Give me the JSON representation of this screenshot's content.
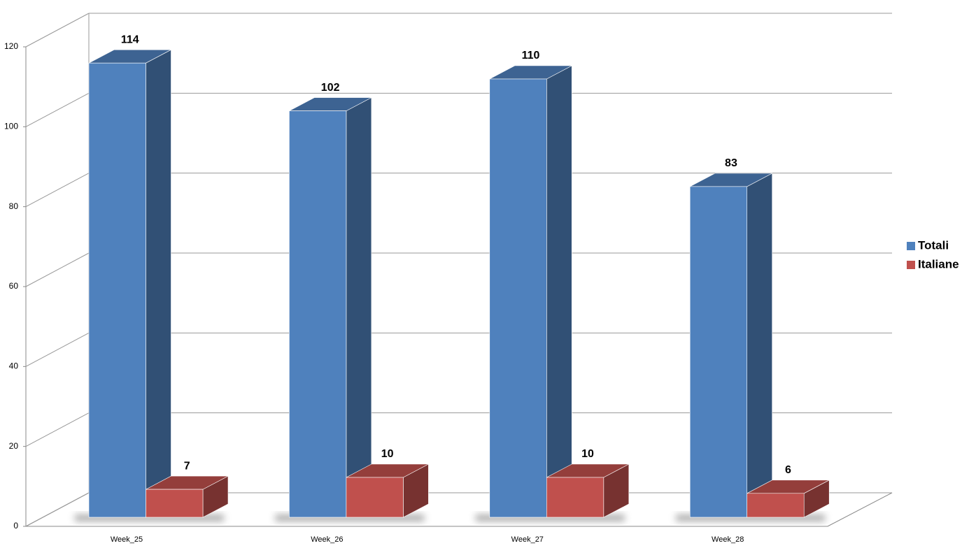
{
  "chart_data": {
    "type": "bar",
    "categories": [
      "Week_25",
      "Week_26",
      "Week_27",
      "Week_28"
    ],
    "series": [
      {
        "name": "Totali",
        "color": "#4f81bd",
        "values": [
          114,
          102,
          110,
          83
        ]
      },
      {
        "name": "Italiane",
        "color": "#c0504d",
        "values": [
          7,
          10,
          10,
          6
        ]
      }
    ],
    "ylim": [
      0,
      120
    ],
    "yticks": [
      0,
      20,
      40,
      60,
      80,
      100,
      120
    ],
    "grid": true,
    "legend": "right"
  }
}
